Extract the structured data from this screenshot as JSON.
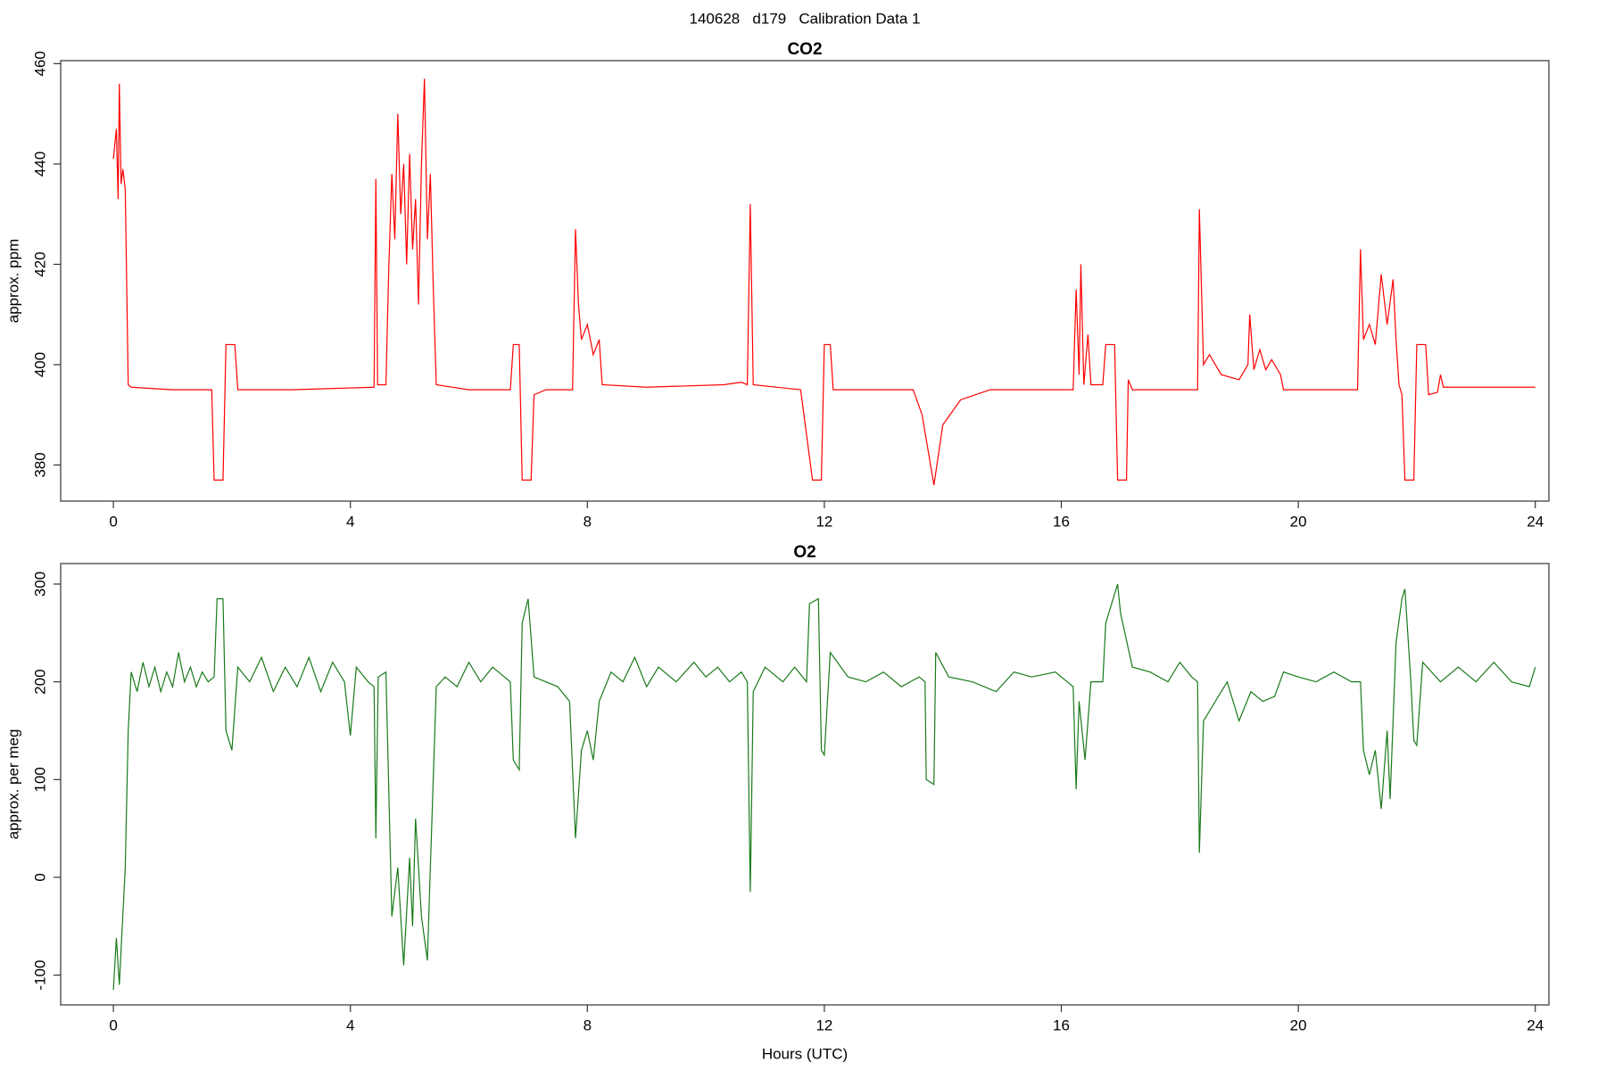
{
  "title": "140628   d179   Calibration Data 1",
  "chart_data": [
    {
      "type": "line",
      "title": "CO2",
      "ylabel": "approx. ppm",
      "xlim": [
        -0.89,
        24.23
      ],
      "ylim": [
        372.8,
        460.6
      ],
      "xticks": [
        0,
        4,
        8,
        12,
        16,
        20,
        24
      ],
      "yticks": [
        380,
        400,
        420,
        440,
        460
      ],
      "x": [
        0.0,
        0.05,
        0.08,
        0.1,
        0.13,
        0.16,
        0.2,
        0.25,
        0.3,
        1.0,
        1.66,
        1.7,
        1.85,
        1.9,
        2.05,
        2.1,
        3,
        4.4,
        4.43,
        4.46,
        4.6,
        4.65,
        4.7,
        4.75,
        4.8,
        4.85,
        4.9,
        4.95,
        5.0,
        5.05,
        5.1,
        5.15,
        5.2,
        5.25,
        5.3,
        5.35,
        5.4,
        5.45,
        6,
        6.7,
        6.75,
        6.85,
        6.9,
        7.05,
        7.1,
        7.3,
        7.75,
        7.8,
        7.85,
        7.9,
        8.0,
        8.1,
        8.2,
        8.25,
        9,
        10.3,
        10.6,
        10.7,
        10.75,
        10.8,
        11.6,
        11.8,
        11.95,
        12.0,
        12.1,
        12.15,
        13.5,
        13.65,
        13.85,
        14.0,
        14.3,
        14.8,
        16.2,
        16.25,
        16.3,
        16.33,
        16.38,
        16.45,
        16.5,
        16.7,
        16.75,
        16.9,
        16.95,
        17.1,
        17.13,
        17.2,
        18.3,
        18.33,
        18.4,
        18.5,
        18.7,
        19.0,
        19.15,
        19.18,
        19.25,
        19.35,
        19.45,
        19.55,
        19.7,
        19.75,
        21.0,
        21.05,
        21.1,
        21.2,
        21.3,
        21.4,
        21.5,
        21.6,
        21.65,
        21.7,
        21.75,
        21.8,
        21.95,
        22.0,
        22.15,
        22.2,
        22.35,
        22.4,
        22.45,
        24.0
      ],
      "series": [
        {
          "color": "#ff0000",
          "values": [
            441,
            447,
            433,
            456,
            436,
            439,
            435,
            396,
            395.5,
            395,
            395,
            377,
            377,
            404,
            404,
            395,
            395,
            395.5,
            437,
            396,
            396,
            420,
            438,
            425,
            450,
            430,
            440,
            420,
            442,
            423,
            433,
            412,
            440,
            457,
            425,
            438,
            415,
            396,
            395,
            395,
            404,
            404,
            377,
            377,
            394,
            395,
            395,
            427,
            412,
            405,
            408,
            402,
            405,
            396,
            395.5,
            396,
            396.5,
            396,
            432,
            396,
            395,
            377,
            377,
            404,
            404,
            395,
            395,
            390,
            376,
            388,
            393,
            395,
            395,
            415,
            398,
            420,
            396,
            406,
            396,
            396,
            404,
            404,
            377,
            377,
            397,
            395,
            395,
            431,
            400,
            402,
            398,
            397,
            400,
            410,
            399,
            403,
            399,
            401,
            398,
            395,
            395,
            423,
            405,
            408,
            404,
            418,
            408,
            417,
            405,
            396,
            394,
            377,
            377,
            404,
            404,
            394,
            394.5,
            398,
            395.5,
            395.5
          ]
        }
      ]
    },
    {
      "type": "line",
      "title": "O2",
      "ylabel": "approx. per meg",
      "xlabel": "Hours (UTC)",
      "xlim": [
        -0.89,
        24.23
      ],
      "ylim": [
        -130.5,
        321
      ],
      "xticks": [
        0,
        4,
        8,
        12,
        16,
        20,
        24
      ],
      "yticks": [
        -100,
        0,
        100,
        200,
        300
      ],
      "x": [
        0,
        0.05,
        0.1,
        0.2,
        0.25,
        0.3,
        0.4,
        0.5,
        0.6,
        0.7,
        0.8,
        0.9,
        1.0,
        1.1,
        1.2,
        1.3,
        1.4,
        1.5,
        1.6,
        1.7,
        1.75,
        1.85,
        1.9,
        2.0,
        2.1,
        2.3,
        2.5,
        2.7,
        2.9,
        3.1,
        3.3,
        3.5,
        3.7,
        3.9,
        4.0,
        4.1,
        4.3,
        4.4,
        4.43,
        4.47,
        4.6,
        4.7,
        4.8,
        4.9,
        5.0,
        5.05,
        5.1,
        5.2,
        5.3,
        5.35,
        5.45,
        5.6,
        5.8,
        6.0,
        6.2,
        6.4,
        6.6,
        6.7,
        6.75,
        6.85,
        6.9,
        7.0,
        7.1,
        7.3,
        7.5,
        7.7,
        7.8,
        7.9,
        8.0,
        8.1,
        8.2,
        8.4,
        8.6,
        8.8,
        9.0,
        9.2,
        9.5,
        9.8,
        10.0,
        10.2,
        10.4,
        10.6,
        10.7,
        10.75,
        10.8,
        11.0,
        11.3,
        11.5,
        11.7,
        11.75,
        11.9,
        11.95,
        12.0,
        12.1,
        12.4,
        12.7,
        13.0,
        13.3,
        13.6,
        13.7,
        13.72,
        13.85,
        13.88,
        14.1,
        14.5,
        14.9,
        15.2,
        15.5,
        15.9,
        16.2,
        16.25,
        16.3,
        16.4,
        16.5,
        16.7,
        16.75,
        16.85,
        16.95,
        17.0,
        17.2,
        17.5,
        17.8,
        18.0,
        18.2,
        18.3,
        18.33,
        18.4,
        18.6,
        18.8,
        19.0,
        19.2,
        19.4,
        19.6,
        19.75,
        20.0,
        20.3,
        20.6,
        20.9,
        21.05,
        21.1,
        21.2,
        21.3,
        21.4,
        21.5,
        21.55,
        21.65,
        21.75,
        21.8,
        21.9,
        21.95,
        22.0,
        22.1,
        22.4,
        22.7,
        23.0,
        23.3,
        23.6,
        23.9,
        24.0
      ],
      "series": [
        {
          "color": "#1a7a1a",
          "values": [
            -115,
            -62,
            -110,
            10,
            150,
            210,
            190,
            220,
            195,
            215,
            190,
            210,
            195,
            230,
            200,
            215,
            195,
            210,
            200,
            205,
            285,
            285,
            150,
            130,
            215,
            200,
            225,
            190,
            215,
            195,
            225,
            190,
            220,
            200,
            145,
            215,
            200,
            195,
            40,
            205,
            210,
            -40,
            10,
            -90,
            20,
            -50,
            60,
            -40,
            -85,
            10,
            195,
            205,
            195,
            220,
            200,
            215,
            205,
            200,
            120,
            110,
            260,
            285,
            205,
            200,
            195,
            180,
            40,
            130,
            150,
            120,
            180,
            210,
            200,
            225,
            195,
            215,
            200,
            220,
            205,
            215,
            200,
            210,
            200,
            -15,
            190,
            215,
            200,
            215,
            200,
            280,
            285,
            130,
            125,
            230,
            205,
            200,
            210,
            195,
            205,
            200,
            100,
            95,
            230,
            205,
            200,
            190,
            210,
            205,
            210,
            195,
            90,
            180,
            120,
            200,
            200,
            260,
            280,
            300,
            270,
            215,
            210,
            200,
            220,
            205,
            200,
            25,
            160,
            180,
            200,
            160,
            190,
            180,
            185,
            210,
            205,
            200,
            210,
            200,
            200,
            130,
            105,
            130,
            70,
            150,
            80,
            240,
            285,
            295,
            200,
            140,
            135,
            220,
            200,
            215,
            200,
            220,
            200,
            195,
            215
          ]
        }
      ]
    }
  ]
}
